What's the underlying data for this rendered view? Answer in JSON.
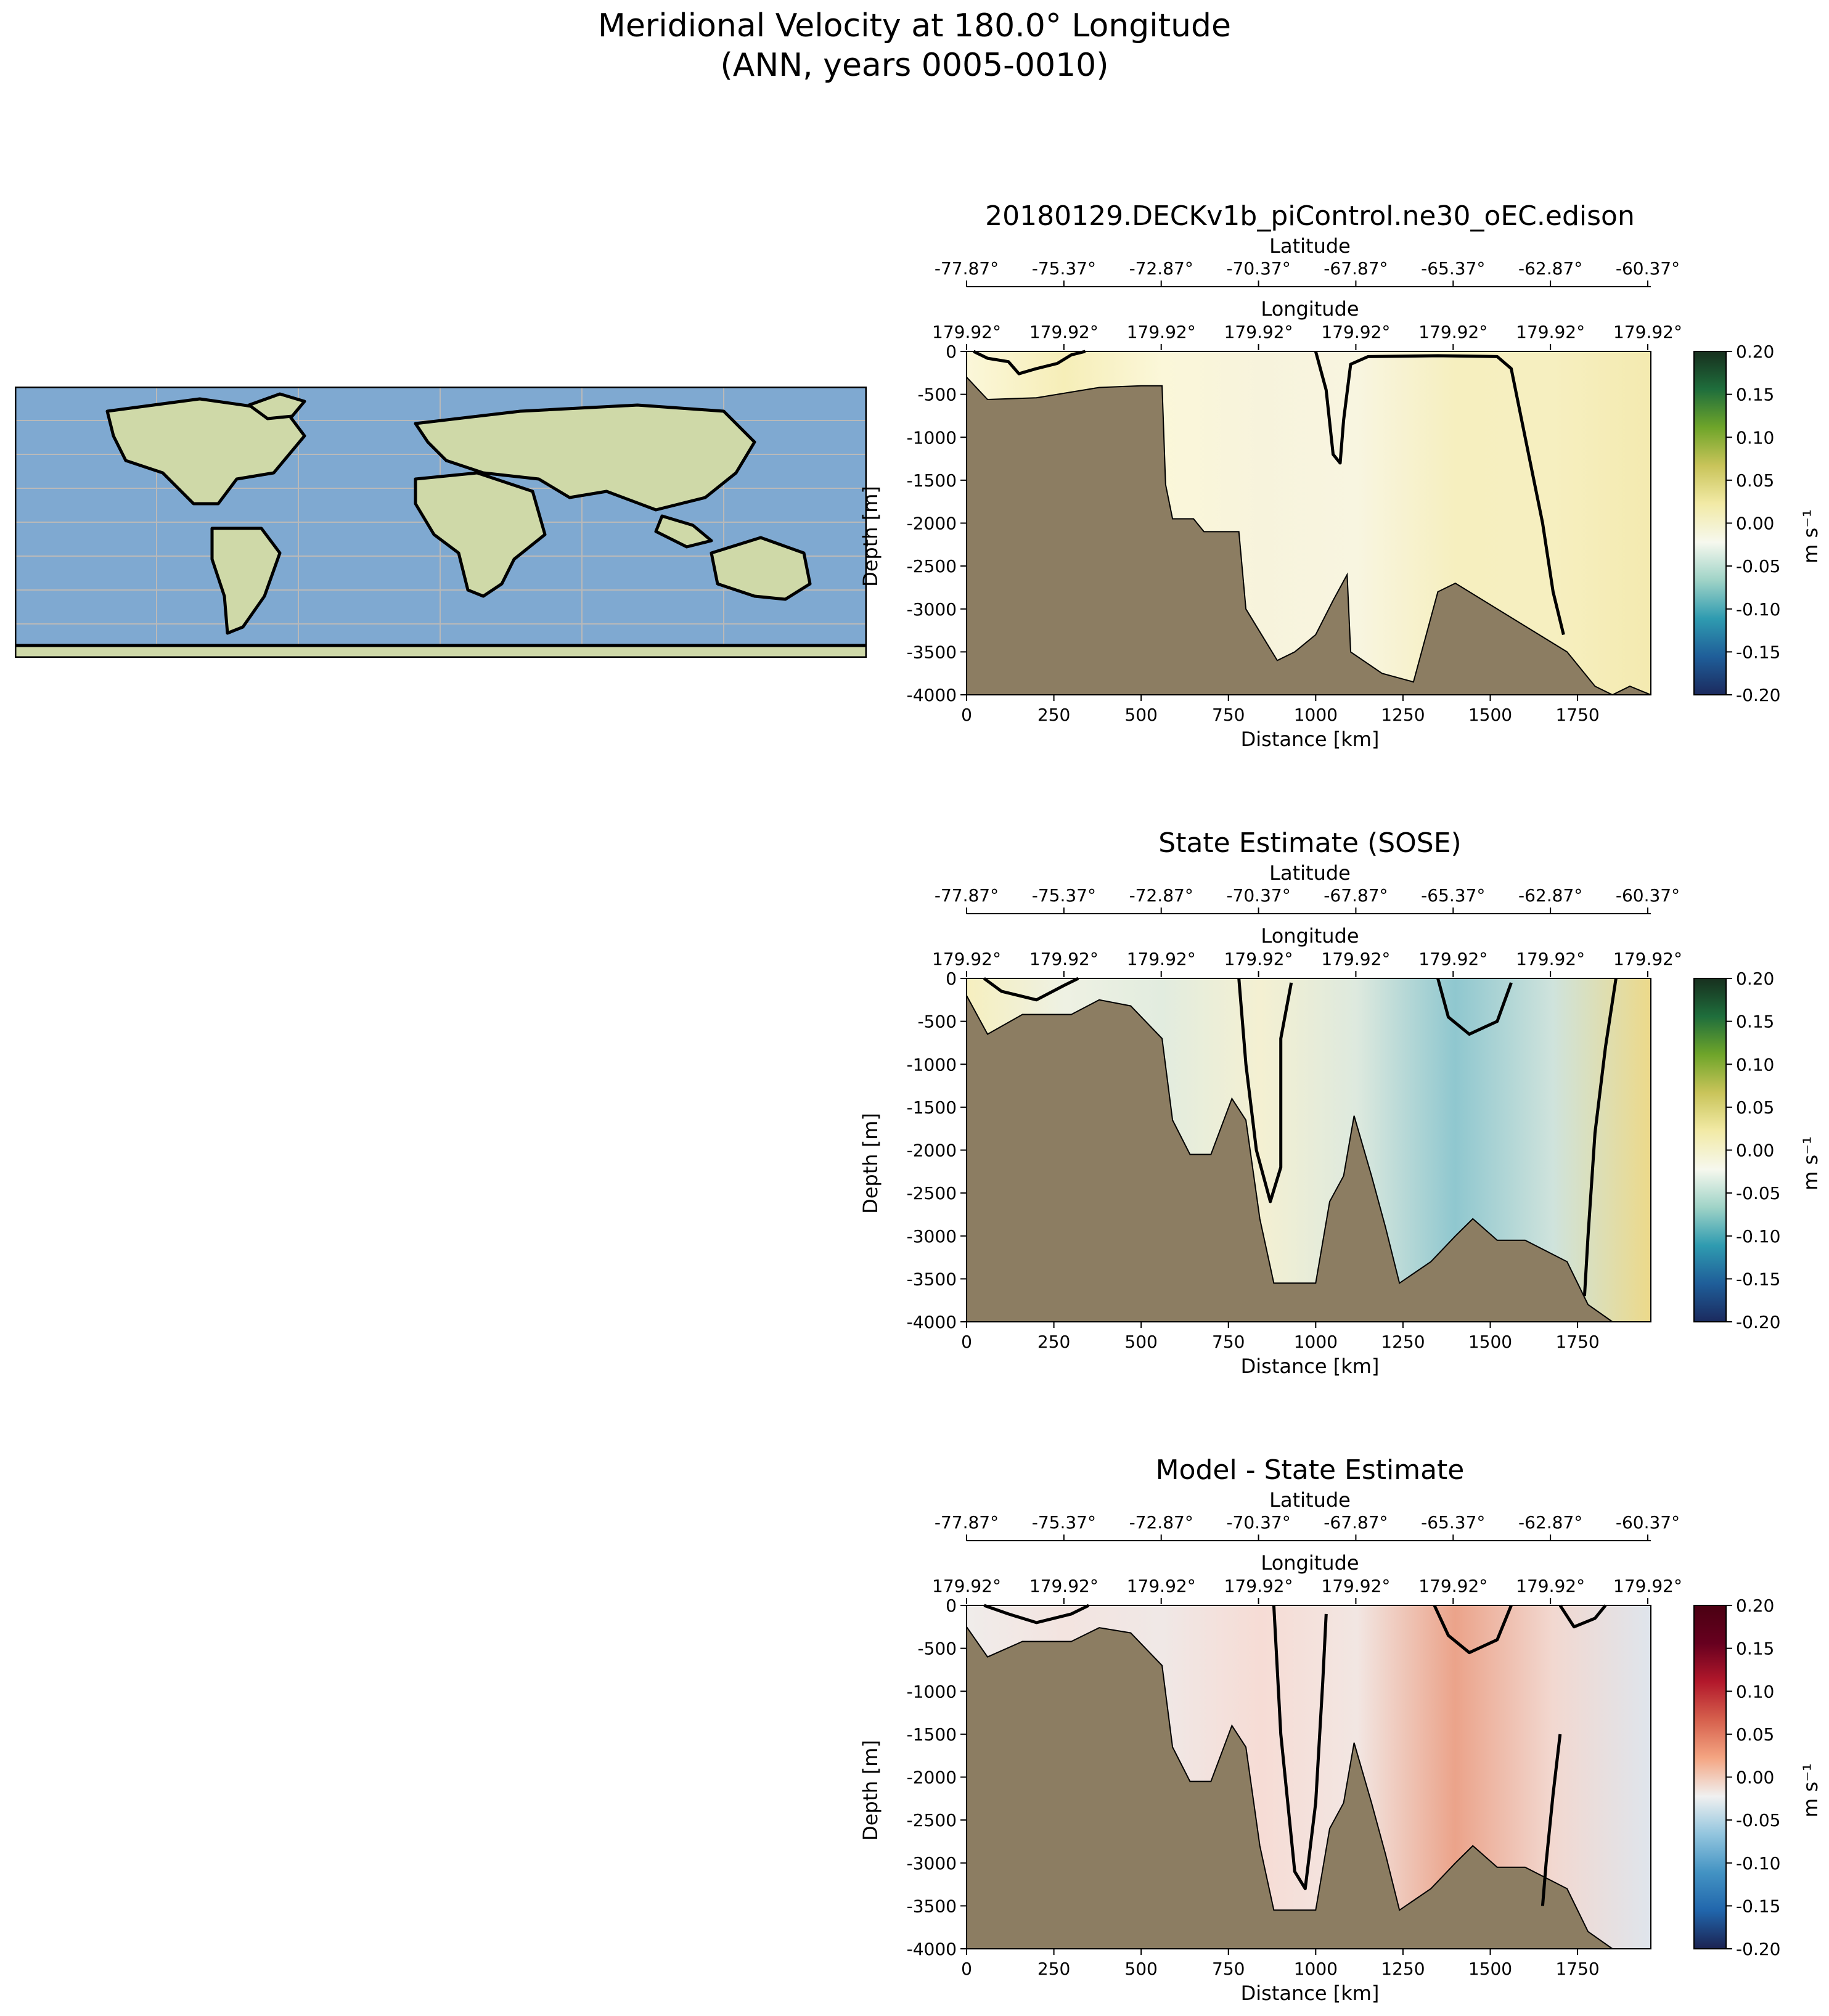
{
  "page_title_line1": "Meridional Velocity at 180.0° Longitude",
  "page_title_line2": "(ANN, years 0005-0010)",
  "colors": {
    "land": "#8c7d62",
    "ocean_map": "#7fa9d1",
    "continent_map": "#cfd9a8",
    "contour": "#000000"
  },
  "icons": [
    "world-map-icon"
  ],
  "chart_data": [
    {
      "type": "heatmap",
      "title": "20180129.DECKv1b_piControl.ne30_oEC.edison",
      "xlabel": "Distance [km]",
      "ylabel": "Depth [m]",
      "top_axis_1_label": "Latitude",
      "top_axis_1_ticks": [
        "-77.87°",
        "-75.37°",
        "-72.87°",
        "-70.37°",
        "-67.87°",
        "-65.37°",
        "-62.87°",
        "-60.37°"
      ],
      "top_axis_2_label": "Longitude",
      "top_axis_2_ticks": [
        "179.92°",
        "179.92°",
        "179.92°",
        "179.92°",
        "179.92°",
        "179.92°",
        "179.92°",
        "179.92°"
      ],
      "x_ticks": [
        "0",
        "250",
        "500",
        "750",
        "1000",
        "1250",
        "1500",
        "1750"
      ],
      "y_ticks": [
        "0",
        "-500",
        "-1000",
        "-1500",
        "-2000",
        "-2500",
        "-3000",
        "-3500",
        "-4000"
      ],
      "xlim": [
        0,
        1960
      ],
      "ylim": [
        -4000,
        0
      ],
      "colorbar_label": "m s⁻¹",
      "colorbar_ticks": [
        "0.20",
        "0.15",
        "0.10",
        "0.05",
        "0.00",
        "-0.05",
        "-0.10",
        "-0.15",
        "-0.20"
      ],
      "colormap": [
        "#1b2a5e",
        "#1f5e99",
        "#2f9bb0",
        "#9fd3c7",
        "#f6f8ee",
        "#f2eaa6",
        "#c9c45a",
        "#6fa52a",
        "#1f6e3c",
        "#172f1e"
      ],
      "field_colors": [
        "#fbf7d9",
        "#f6eeb8",
        "#fbf7d9",
        "#f7f3dc",
        "#f8f5e0",
        "#f6efbf",
        "#f6efc0",
        "#f4eab0"
      ],
      "bathymetry": [
        [
          0,
          -300
        ],
        [
          60,
          -560
        ],
        [
          200,
          -540
        ],
        [
          380,
          -420
        ],
        [
          500,
          -400
        ],
        [
          560,
          -400
        ],
        [
          570,
          -1550
        ],
        [
          590,
          -1950
        ],
        [
          650,
          -1950
        ],
        [
          680,
          -2100
        ],
        [
          780,
          -2100
        ],
        [
          800,
          -3000
        ],
        [
          890,
          -3600
        ],
        [
          940,
          -3500
        ],
        [
          1000,
          -3300
        ],
        [
          1050,
          -2900
        ],
        [
          1090,
          -2600
        ],
        [
          1100,
          -3500
        ],
        [
          1190,
          -3750
        ],
        [
          1280,
          -3850
        ],
        [
          1350,
          -2800
        ],
        [
          1400,
          -2700
        ],
        [
          1460,
          -2850
        ],
        [
          1600,
          -3200
        ],
        [
          1720,
          -3500
        ],
        [
          1800,
          -3900
        ],
        [
          1850,
          -4000
        ],
        [
          1900,
          -3900
        ],
        [
          1960,
          -4000
        ]
      ],
      "contours": [
        [
          [
            20,
            0
          ],
          [
            60,
            -80
          ],
          [
            120,
            -120
          ],
          [
            150,
            -260
          ],
          [
            200,
            -200
          ],
          [
            260,
            -140
          ],
          [
            300,
            -40
          ],
          [
            340,
            0
          ]
        ],
        [
          [
            1000,
            0
          ],
          [
            1030,
            -450
          ],
          [
            1050,
            -1200
          ],
          [
            1070,
            -1300
          ],
          [
            1080,
            -800
          ],
          [
            1100,
            -150
          ],
          [
            1150,
            -60
          ],
          [
            1350,
            -50
          ],
          [
            1520,
            -60
          ],
          [
            1560,
            -200
          ],
          [
            1600,
            -1000
          ],
          [
            1650,
            -2000
          ],
          [
            1680,
            -2800
          ],
          [
            1710,
            -3300
          ]
        ]
      ]
    },
    {
      "type": "heatmap",
      "title": "State Estimate (SOSE)",
      "xlabel": "Distance [km]",
      "ylabel": "Depth [m]",
      "top_axis_1_label": "Latitude",
      "top_axis_1_ticks": [
        "-77.87°",
        "-75.37°",
        "-72.87°",
        "-70.37°",
        "-67.87°",
        "-65.37°",
        "-62.87°",
        "-60.37°"
      ],
      "top_axis_2_label": "Longitude",
      "top_axis_2_ticks": [
        "179.92°",
        "179.92°",
        "179.92°",
        "179.92°",
        "179.92°",
        "179.92°",
        "179.92°",
        "179.92°"
      ],
      "x_ticks": [
        "0",
        "250",
        "500",
        "750",
        "1000",
        "1250",
        "1500",
        "1750"
      ],
      "y_ticks": [
        "0",
        "-500",
        "-1000",
        "-1500",
        "-2000",
        "-2500",
        "-3000",
        "-3500",
        "-4000"
      ],
      "xlim": [
        0,
        1960
      ],
      "ylim": [
        -4000,
        0
      ],
      "colorbar_label": "m s⁻¹",
      "colorbar_ticks": [
        "0.20",
        "0.15",
        "0.10",
        "0.05",
        "0.00",
        "-0.05",
        "-0.10",
        "-0.15",
        "-0.20"
      ],
      "colormap": [
        "#1b2a5e",
        "#1f5e99",
        "#2f9bb0",
        "#9fd3c7",
        "#f6f8ee",
        "#f2eaa6",
        "#c9c45a",
        "#6fa52a",
        "#1f6e3c",
        "#172f1e"
      ],
      "field_colors": [
        "#f6efbf",
        "#eef1e3",
        "#e2ecdf",
        "#f4f0d2",
        "#dde9de",
        "#8fc7cf",
        "#cfe3dc",
        "#ecd98a"
      ],
      "bathymetry": [
        [
          0,
          -200
        ],
        [
          60,
          -650
        ],
        [
          160,
          -420
        ],
        [
          300,
          -420
        ],
        [
          380,
          -250
        ],
        [
          470,
          -320
        ],
        [
          560,
          -700
        ],
        [
          590,
          -1650
        ],
        [
          640,
          -2050
        ],
        [
          700,
          -2050
        ],
        [
          760,
          -1400
        ],
        [
          800,
          -1650
        ],
        [
          840,
          -2800
        ],
        [
          880,
          -3550
        ],
        [
          1000,
          -3550
        ],
        [
          1040,
          -2600
        ],
        [
          1080,
          -2300
        ],
        [
          1110,
          -1600
        ],
        [
          1160,
          -2300
        ],
        [
          1200,
          -2900
        ],
        [
          1240,
          -3550
        ],
        [
          1330,
          -3300
        ],
        [
          1400,
          -3000
        ],
        [
          1450,
          -2800
        ],
        [
          1520,
          -3050
        ],
        [
          1600,
          -3050
        ],
        [
          1720,
          -3300
        ],
        [
          1780,
          -3800
        ],
        [
          1850,
          -4000
        ],
        [
          1960,
          -4000
        ]
      ],
      "contours": [
        [
          [
            50,
            0
          ],
          [
            100,
            -150
          ],
          [
            200,
            -250
          ],
          [
            280,
            -80
          ],
          [
            320,
            0
          ]
        ],
        [
          [
            780,
            0
          ],
          [
            800,
            -1000
          ],
          [
            830,
            -2000
          ],
          [
            870,
            -2600
          ],
          [
            900,
            -2200
          ],
          [
            900,
            -700
          ],
          [
            930,
            -50
          ]
        ],
        [
          [
            1350,
            0
          ],
          [
            1380,
            -450
          ],
          [
            1440,
            -650
          ],
          [
            1520,
            -500
          ],
          [
            1560,
            -50
          ]
        ],
        [
          [
            1860,
            0
          ],
          [
            1830,
            -800
          ],
          [
            1800,
            -1800
          ],
          [
            1780,
            -3000
          ],
          [
            1770,
            -3700
          ]
        ]
      ]
    },
    {
      "type": "heatmap",
      "title": "Model - State Estimate",
      "xlabel": "Distance [km]",
      "ylabel": "Depth [m]",
      "top_axis_1_label": "Latitude",
      "top_axis_1_ticks": [
        "-77.87°",
        "-75.37°",
        "-72.87°",
        "-70.37°",
        "-67.87°",
        "-65.37°",
        "-62.87°",
        "-60.37°"
      ],
      "top_axis_2_label": "Longitude",
      "top_axis_2_ticks": [
        "179.92°",
        "179.92°",
        "179.92°",
        "179.92°",
        "179.92°",
        "179.92°",
        "179.92°",
        "179.92°"
      ],
      "x_ticks": [
        "0",
        "250",
        "500",
        "750",
        "1000",
        "1250",
        "1500",
        "1750"
      ],
      "y_ticks": [
        "0",
        "-500",
        "-1000",
        "-1500",
        "-2000",
        "-2500",
        "-3000",
        "-3500",
        "-4000"
      ],
      "xlim": [
        0,
        1960
      ],
      "ylim": [
        -4000,
        0
      ],
      "colorbar_label": "m s⁻¹",
      "colorbar_ticks": [
        "0.20",
        "0.15",
        "0.10",
        "0.05",
        "0.00",
        "-0.05",
        "-0.10",
        "-0.15",
        "-0.20"
      ],
      "colormap": [
        "#1b2251",
        "#2166ac",
        "#4393c3",
        "#92c5de",
        "#f0f0f0",
        "#f4a582",
        "#d6604d",
        "#b2182b",
        "#67001f",
        "#4a0012"
      ],
      "field_colors": [
        "#f0ecea",
        "#f3e4e0",
        "#f0e8e6",
        "#f6dcd5",
        "#f2e6e2",
        "#eba38a",
        "#f2d8d0",
        "#dfe5ec"
      ],
      "bathymetry": [
        [
          0,
          -250
        ],
        [
          60,
          -600
        ],
        [
          160,
          -420
        ],
        [
          300,
          -420
        ],
        [
          380,
          -260
        ],
        [
          470,
          -320
        ],
        [
          560,
          -700
        ],
        [
          590,
          -1650
        ],
        [
          640,
          -2050
        ],
        [
          700,
          -2050
        ],
        [
          760,
          -1400
        ],
        [
          800,
          -1650
        ],
        [
          840,
          -2800
        ],
        [
          880,
          -3550
        ],
        [
          1000,
          -3550
        ],
        [
          1040,
          -2600
        ],
        [
          1080,
          -2300
        ],
        [
          1110,
          -1600
        ],
        [
          1160,
          -2300
        ],
        [
          1200,
          -2900
        ],
        [
          1240,
          -3550
        ],
        [
          1330,
          -3300
        ],
        [
          1400,
          -3000
        ],
        [
          1450,
          -2800
        ],
        [
          1520,
          -3050
        ],
        [
          1600,
          -3050
        ],
        [
          1720,
          -3300
        ],
        [
          1780,
          -3800
        ],
        [
          1850,
          -4000
        ],
        [
          1960,
          -4000
        ]
      ],
      "contours": [
        [
          [
            50,
            0
          ],
          [
            120,
            -100
          ],
          [
            200,
            -200
          ],
          [
            300,
            -100
          ],
          [
            350,
            0
          ]
        ],
        [
          [
            880,
            0
          ],
          [
            900,
            -1500
          ],
          [
            940,
            -3100
          ],
          [
            970,
            -3300
          ],
          [
            1000,
            -2300
          ],
          [
            1020,
            -900
          ],
          [
            1030,
            -100
          ]
        ],
        [
          [
            1340,
            0
          ],
          [
            1380,
            -350
          ],
          [
            1440,
            -550
          ],
          [
            1520,
            -400
          ],
          [
            1560,
            0
          ]
        ],
        [
          [
            1700,
            0
          ],
          [
            1740,
            -250
          ],
          [
            1800,
            -150
          ],
          [
            1830,
            0
          ]
        ],
        [
          [
            1700,
            -1500
          ],
          [
            1680,
            -2200
          ],
          [
            1660,
            -3000
          ],
          [
            1650,
            -3500
          ]
        ]
      ]
    }
  ]
}
